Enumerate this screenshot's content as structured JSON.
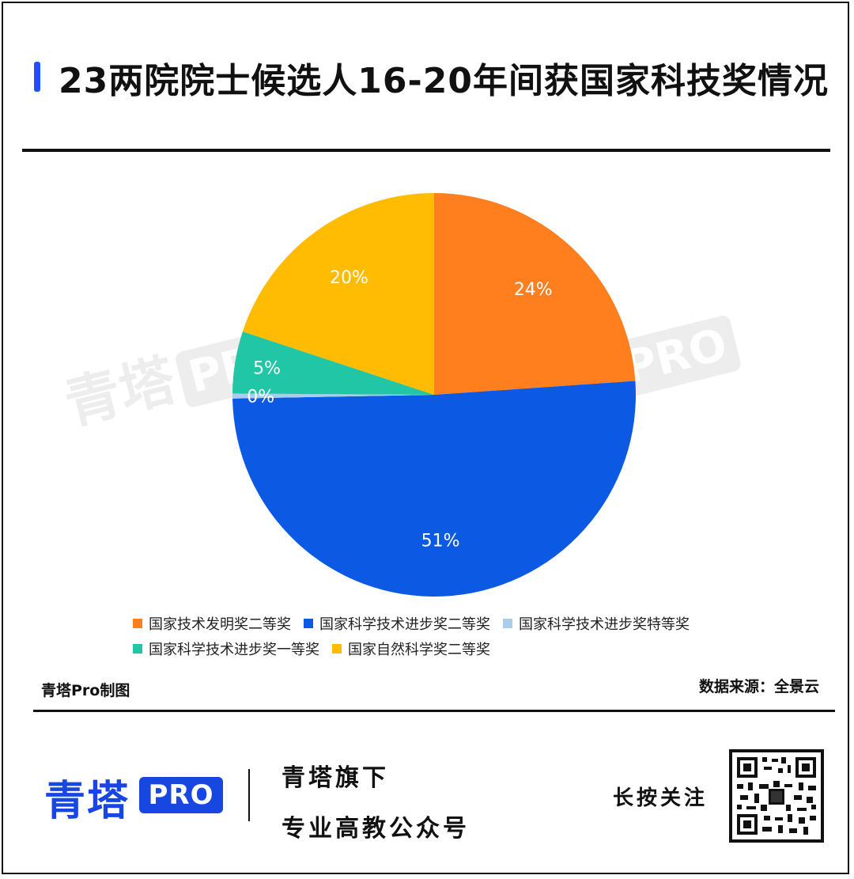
{
  "title": "23两院院士候选人16-20年间获国家科技奖情况",
  "chart_data": {
    "type": "pie",
    "title": "23两院院士候选人16-20年间获国家科技奖情况",
    "slices": [
      {
        "label": "国家技术发明奖二等奖",
        "value": 24,
        "display": "24%",
        "color": "#ff7f1e"
      },
      {
        "label": "国家科学技术进步奖二等奖",
        "value": 51,
        "display": "51%",
        "color": "#0c59e4"
      },
      {
        "label": "国家科学技术进步奖特等奖",
        "value": 0.4,
        "display": "0%",
        "color": "#a9cdea"
      },
      {
        "label": "国家科学技术进步奖一等奖",
        "value": 5,
        "display": "5%",
        "color": "#20c6a6"
      },
      {
        "label": "国家自然科学奖二等奖",
        "value": 20,
        "display": "20%",
        "color": "#ffbc02"
      }
    ],
    "legend_position": "bottom"
  },
  "watermark": {
    "text": "青塔",
    "badge": "PRO"
  },
  "footer": {
    "maker": "青塔Pro制图",
    "source": "数据来源：全景云",
    "brand": "青塔",
    "brand_badge": "PRO",
    "tagline1": "青塔旗下",
    "tagline2": "专业高教公众号",
    "follow": "长按关注"
  },
  "colors": {
    "accent": "#1f4fff",
    "brand": "#1747e0"
  }
}
